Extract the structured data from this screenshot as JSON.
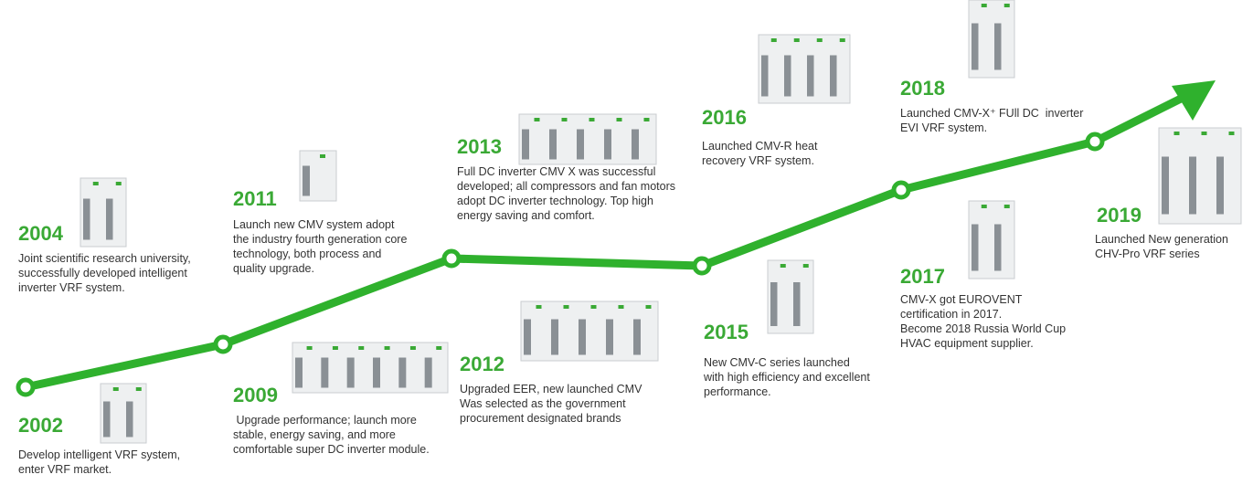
{
  "milestones": [
    {
      "year": "2002",
      "lines": [
        "Develop intelligent VRF system,",
        "enter VRF market."
      ]
    },
    {
      "year": "2004",
      "lines": [
        "Joint scientific research university,",
        "successfully developed intelligent",
        "inverter VRF system."
      ]
    },
    {
      "year": "2009",
      "lines": [
        " Upgrade performance; launch more",
        "stable, energy saving, and more",
        "comfortable super DC inverter module."
      ]
    },
    {
      "year": "2011",
      "lines": [
        "Launch new CMV system adopt",
        "the industry fourth generation core",
        "technology, both process and",
        "quality upgrade."
      ]
    },
    {
      "year": "2012",
      "lines": [
        "Upgraded EER, new launched CMV",
        "Was selected as the government",
        "procurement designated brands"
      ]
    },
    {
      "year": "2013",
      "lines": [
        "Full DC inverter CMV X was successful",
        "developed; all compressors and fan motors",
        "adopt DC inverter technology. Top high",
        "energy saving and comfort."
      ]
    },
    {
      "year": "2015",
      "lines": [
        "New CMV-C series launched",
        "with high efficiency and excellent",
        "performance."
      ]
    },
    {
      "year": "2016",
      "lines": [
        "Launched CMV-R heat",
        "recovery VRF system."
      ]
    },
    {
      "year": "2017",
      "lines": [
        "CMV-X got EUROVENT",
        "certification in 2017.",
        "Become 2018 Russia World Cup",
        "HVAC equipment supplier."
      ]
    },
    {
      "year": "2018",
      "lines": [
        "Launched CMV-X⁺ FUll DC  inverter",
        "EVI VRF system."
      ]
    },
    {
      "year": "2019",
      "lines": [
        "Launched New generation",
        "CHV-Pro VRF series"
      ]
    }
  ]
}
